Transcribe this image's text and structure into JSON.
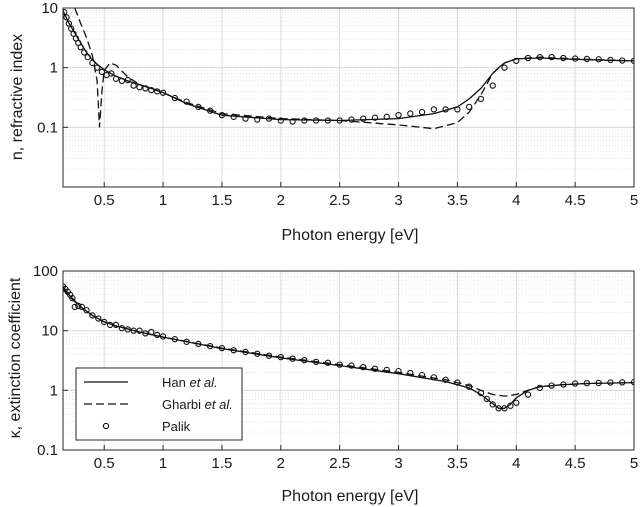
{
  "chart_data": [
    {
      "type": "line",
      "xlabel": "Photon energy [eV]",
      "ylabel": "n, refractive index",
      "yscale": "log",
      "xlim": [
        0.15,
        5
      ],
      "ylim": [
        0.01,
        10
      ],
      "xticks": [
        "0.5",
        "1",
        "1.5",
        "2",
        "2.5",
        "3",
        "3.5",
        "4",
        "4.5",
        "5"
      ],
      "yticks": [
        "0.1",
        "1",
        "10"
      ],
      "grid": true,
      "series": [
        {
          "name": "Han et al.",
          "style": "solid",
          "x": [
            0.15,
            0.2,
            0.25,
            0.3,
            0.35,
            0.4,
            0.45,
            0.5,
            0.6,
            0.7,
            0.8,
            0.9,
            1.0,
            1.2,
            1.5,
            2.0,
            2.5,
            3.0,
            3.3,
            3.5,
            3.6,
            3.7,
            3.75,
            3.8,
            3.85,
            3.9,
            4.0,
            4.2,
            4.5,
            4.8,
            5.0
          ],
          "y": [
            9.0,
            5.6,
            3.8,
            2.6,
            1.8,
            1.35,
            1.1,
            0.92,
            0.72,
            0.6,
            0.52,
            0.45,
            0.38,
            0.25,
            0.16,
            0.135,
            0.13,
            0.14,
            0.17,
            0.22,
            0.3,
            0.45,
            0.6,
            0.8,
            1.0,
            1.2,
            1.4,
            1.45,
            1.38,
            1.33,
            1.3
          ]
        },
        {
          "name": "Gharbi et al.",
          "style": "dashed",
          "x": [
            0.25,
            0.3,
            0.35,
            0.4,
            0.44,
            0.46,
            0.48,
            0.5,
            0.55,
            0.6,
            0.7,
            0.8,
            0.9,
            1.0,
            1.2,
            1.5,
            2.0,
            2.5,
            3.0,
            3.3,
            3.5,
            3.6,
            3.7,
            3.8,
            3.9,
            4.0,
            4.2,
            4.5,
            5.0
          ],
          "y": [
            10,
            5.5,
            3.2,
            1.6,
            0.6,
            0.1,
            0.4,
            0.9,
            1.2,
            1.1,
            0.7,
            0.52,
            0.45,
            0.38,
            0.26,
            0.17,
            0.14,
            0.13,
            0.11,
            0.095,
            0.12,
            0.18,
            0.35,
            0.8,
            1.2,
            1.4,
            1.5,
            1.4,
            1.3
          ]
        },
        {
          "name": "Palik",
          "style": "markers",
          "x": [
            0.16,
            0.18,
            0.2,
            0.22,
            0.24,
            0.26,
            0.28,
            0.3,
            0.33,
            0.36,
            0.4,
            0.44,
            0.48,
            0.52,
            0.56,
            0.6,
            0.65,
            0.7,
            0.75,
            0.8,
            0.85,
            0.9,
            0.95,
            1.0,
            1.1,
            1.2,
            1.3,
            1.4,
            1.5,
            1.6,
            1.7,
            1.8,
            1.9,
            2.0,
            2.1,
            2.2,
            2.3,
            2.4,
            2.5,
            2.6,
            2.7,
            2.8,
            2.9,
            3.0,
            3.1,
            3.2,
            3.3,
            3.4,
            3.5,
            3.6,
            3.7,
            3.8,
            3.9,
            4.0,
            4.1,
            4.2,
            4.3,
            4.4,
            4.5,
            4.6,
            4.7,
            4.8,
            4.9,
            5.0
          ],
          "y": [
            8.5,
            7.0,
            5.5,
            4.5,
            3.7,
            3.1,
            2.6,
            2.2,
            1.8,
            1.5,
            1.2,
            1.0,
            0.85,
            0.75,
            0.8,
            0.65,
            0.6,
            0.62,
            0.5,
            0.47,
            0.45,
            0.42,
            0.4,
            0.38,
            0.31,
            0.27,
            0.22,
            0.19,
            0.16,
            0.15,
            0.14,
            0.135,
            0.14,
            0.13,
            0.125,
            0.13,
            0.13,
            0.13,
            0.13,
            0.135,
            0.14,
            0.145,
            0.15,
            0.16,
            0.17,
            0.18,
            0.2,
            0.2,
            0.2,
            0.22,
            0.3,
            0.5,
            1.0,
            1.3,
            1.45,
            1.5,
            1.5,
            1.45,
            1.42,
            1.4,
            1.38,
            1.35,
            1.32,
            1.3
          ]
        }
      ]
    },
    {
      "type": "line",
      "xlabel": "Photon energy [eV]",
      "ylabel": "κ, extinction coefficient",
      "yscale": "log",
      "xlim": [
        0.15,
        5
      ],
      "ylim": [
        0.1,
        100
      ],
      "xticks": [
        "0.5",
        "1",
        "1.5",
        "2",
        "2.5",
        "3",
        "3.5",
        "4",
        "4.5",
        "5"
      ],
      "yticks": [
        "0.1",
        "1",
        "10",
        "100"
      ],
      "grid": true,
      "legend": "bottom-left",
      "series": [
        {
          "name": "Han et al.",
          "style": "solid",
          "x": [
            0.15,
            0.2,
            0.3,
            0.4,
            0.5,
            0.6,
            0.8,
            1.0,
            1.5,
            2.0,
            2.5,
            3.0,
            3.4,
            3.6,
            3.7,
            3.8,
            3.85,
            3.9,
            3.95,
            4.0,
            4.1,
            4.2,
            4.4,
            4.6,
            5.0
          ],
          "y": [
            55,
            40,
            25,
            18,
            14,
            12,
            9.5,
            7.8,
            5.0,
            3.5,
            2.6,
            1.9,
            1.4,
            1.1,
            0.85,
            0.6,
            0.5,
            0.5,
            0.58,
            0.75,
            1.0,
            1.15,
            1.25,
            1.3,
            1.35
          ]
        },
        {
          "name": "Gharbi et al.",
          "style": "dashed",
          "x": [
            0.15,
            0.2,
            0.3,
            0.4,
            0.5,
            0.6,
            0.8,
            1.0,
            1.5,
            2.0,
            2.5,
            3.0,
            3.4,
            3.6,
            3.7,
            3.8,
            3.9,
            4.0,
            4.1,
            4.2,
            4.4,
            4.6,
            5.0
          ],
          "y": [
            50,
            38,
            25,
            18,
            14,
            12,
            9.5,
            7.8,
            5.1,
            3.6,
            2.7,
            2.0,
            1.5,
            1.2,
            1.0,
            0.85,
            0.8,
            0.85,
            1.0,
            1.15,
            1.25,
            1.3,
            1.35
          ]
        },
        {
          "name": "Palik",
          "style": "markers",
          "x": [
            0.15,
            0.17,
            0.19,
            0.21,
            0.23,
            0.25,
            0.28,
            0.31,
            0.35,
            0.4,
            0.45,
            0.5,
            0.55,
            0.6,
            0.65,
            0.7,
            0.75,
            0.8,
            0.85,
            0.9,
            0.95,
            1.0,
            1.1,
            1.2,
            1.3,
            1.4,
            1.5,
            1.6,
            1.7,
            1.8,
            1.9,
            2.0,
            2.1,
            2.2,
            2.3,
            2.4,
            2.5,
            2.6,
            2.7,
            2.8,
            2.9,
            3.0,
            3.1,
            3.2,
            3.3,
            3.4,
            3.5,
            3.6,
            3.7,
            3.75,
            3.8,
            3.85,
            3.9,
            3.95,
            4.0,
            4.1,
            4.2,
            4.3,
            4.4,
            4.5,
            4.6,
            4.7,
            4.8,
            4.9,
            5.0
          ],
          "y": [
            55,
            50,
            45,
            40,
            35,
            25,
            26,
            25,
            22,
            18,
            16,
            14,
            12.5,
            12.5,
            11,
            10.5,
            10,
            10,
            9,
            9.5,
            8.5,
            8,
            7.2,
            6.5,
            6,
            5.5,
            5.1,
            4.7,
            4.4,
            4.1,
            3.8,
            3.6,
            3.4,
            3.2,
            3.0,
            2.9,
            2.7,
            2.6,
            2.45,
            2.3,
            2.2,
            2.1,
            1.95,
            1.8,
            1.65,
            1.5,
            1.35,
            1.15,
            0.9,
            0.72,
            0.58,
            0.5,
            0.5,
            0.55,
            0.62,
            0.85,
            1.1,
            1.2,
            1.25,
            1.3,
            1.32,
            1.33,
            1.35,
            1.36,
            1.37
          ]
        }
      ]
    }
  ],
  "legend": {
    "entries": [
      {
        "prefix": "Han ",
        "emph": "et al.",
        "style": "solid"
      },
      {
        "prefix": "Gharbi ",
        "emph": "et al.",
        "style": "dashed"
      },
      {
        "prefix": "Palik",
        "emph": "",
        "style": "markers"
      }
    ]
  }
}
